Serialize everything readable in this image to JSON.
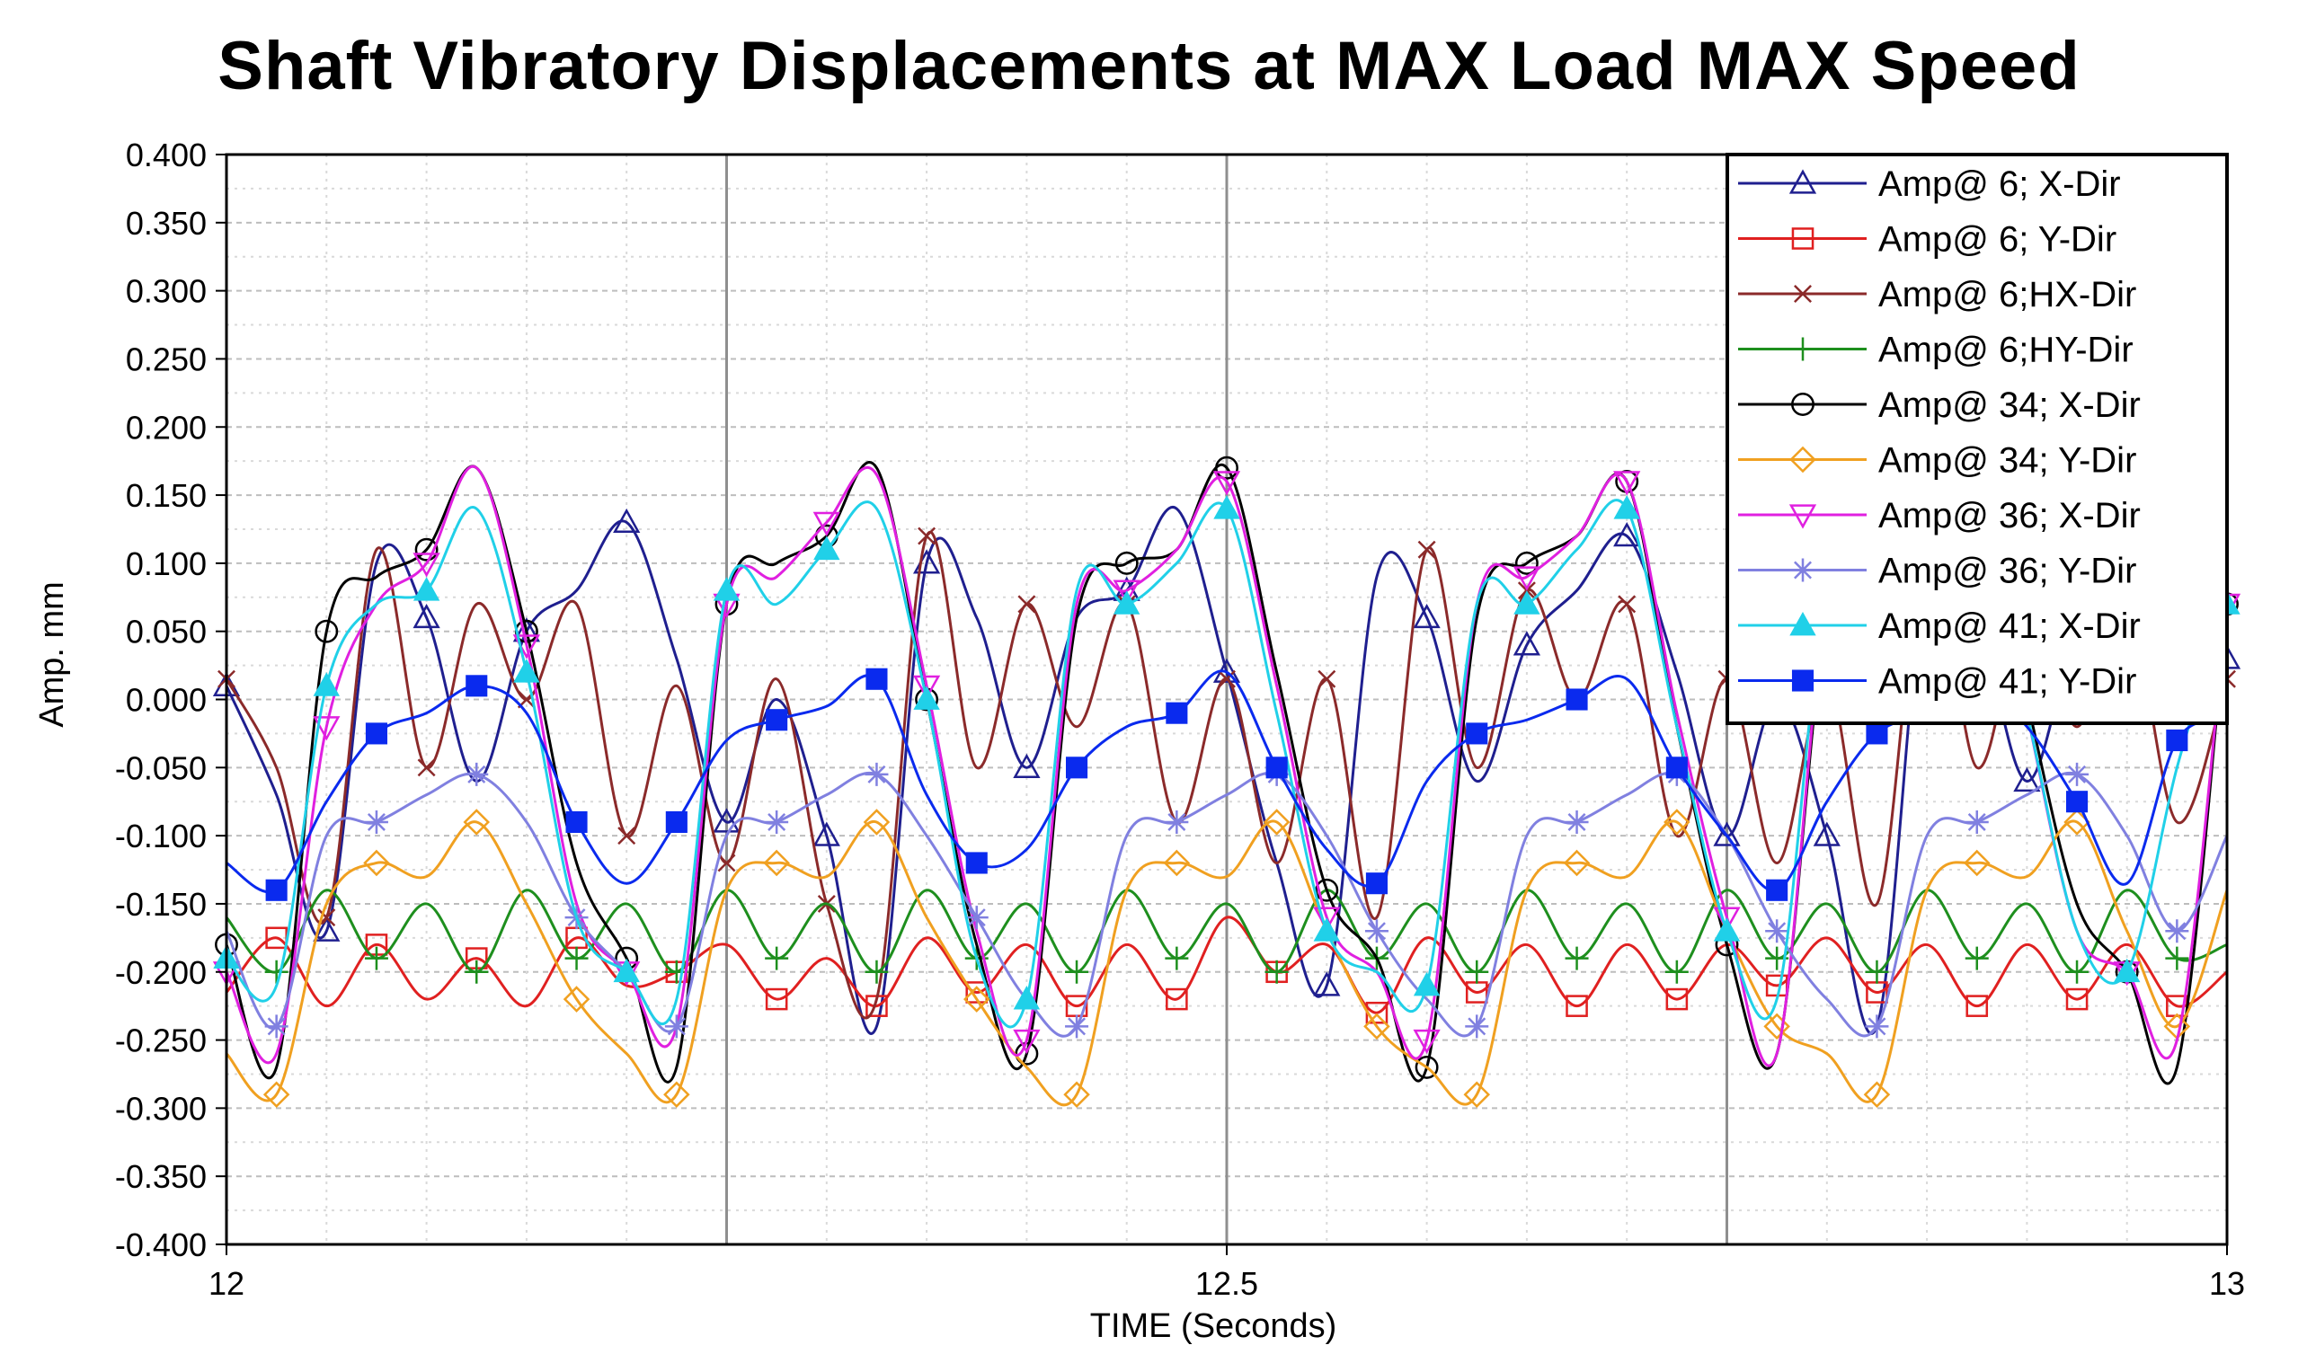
{
  "chart_data": {
    "type": "line",
    "title": "Shaft Vibratory Displacements at MAX Load MAX Speed",
    "xlabel": "TIME (Seconds)",
    "ylabel": "Amp. mm",
    "xlim": [
      12,
      13
    ],
    "ylim": [
      -0.4,
      0.4
    ],
    "x_ticks": [
      {
        "value": 12,
        "label": "12"
      },
      {
        "value": 12.5,
        "label": "12.5"
      },
      {
        "value": 13,
        "label": "13"
      }
    ],
    "y_ticks": [
      {
        "value": 0.4,
        "label": "0.400"
      },
      {
        "value": 0.35,
        "label": "0.350"
      },
      {
        "value": 0.3,
        "label": "0.300"
      },
      {
        "value": 0.25,
        "label": "0.250"
      },
      {
        "value": 0.2,
        "label": "0.200"
      },
      {
        "value": 0.15,
        "label": "0.150"
      },
      {
        "value": 0.1,
        "label": "0.100"
      },
      {
        "value": 0.05,
        "label": "0.050"
      },
      {
        "value": 0.0,
        "label": "0.000"
      },
      {
        "value": -0.05,
        "label": "-0.050"
      },
      {
        "value": -0.1,
        "label": "-0.100"
      },
      {
        "value": -0.15,
        "label": "-0.150"
      },
      {
        "value": -0.2,
        "label": "-0.200"
      },
      {
        "value": -0.25,
        "label": "-0.250"
      },
      {
        "value": -0.3,
        "label": "-0.300"
      },
      {
        "value": -0.35,
        "label": "-0.350"
      },
      {
        "value": -0.4,
        "label": "-0.400"
      }
    ],
    "grid": true,
    "legend_position": "top-right",
    "x": [
      12.0,
      12.025,
      12.05,
      12.075,
      12.1,
      12.125,
      12.15,
      12.175,
      12.2,
      12.225,
      12.25,
      12.275,
      12.3,
      12.325,
      12.35,
      12.375,
      12.4,
      12.425,
      12.45,
      12.475,
      12.5,
      12.525,
      12.55,
      12.575,
      12.6,
      12.625,
      12.65,
      12.675,
      12.7,
      12.725,
      12.75,
      12.775,
      12.8,
      12.825,
      12.85,
      12.875,
      12.9,
      12.925,
      12.95,
      12.975,
      13.0
    ],
    "series": [
      {
        "name": "Amp@  6; X-Dir",
        "color": "#1f1f8f",
        "marker": "triangle-open",
        "values": [
          0.01,
          -0.07,
          -0.17,
          0.1,
          0.06,
          -0.06,
          0.05,
          0.08,
          0.13,
          0.03,
          -0.09,
          0.0,
          -0.1,
          -0.24,
          0.1,
          0.06,
          -0.05,
          0.06,
          0.08,
          0.14,
          0.02,
          -0.12,
          -0.21,
          0.09,
          0.06,
          -0.06,
          0.04,
          0.08,
          0.12,
          0.02,
          -0.1,
          0.0,
          -0.1,
          -0.24,
          0.1,
          0.06,
          -0.06,
          0.05,
          0.08,
          0.13,
          0.03
        ]
      },
      {
        "name": "Amp@  6; Y-Dir",
        "color": "#e02020",
        "marker": "square-open",
        "values": [
          -0.215,
          -0.175,
          -0.225,
          -0.18,
          -0.22,
          -0.19,
          -0.225,
          -0.175,
          -0.21,
          -0.2,
          -0.18,
          -0.22,
          -0.19,
          -0.225,
          -0.175,
          -0.215,
          -0.18,
          -0.225,
          -0.18,
          -0.22,
          -0.16,
          -0.2,
          -0.18,
          -0.23,
          -0.175,
          -0.215,
          -0.18,
          -0.225,
          -0.18,
          -0.22,
          -0.18,
          -0.21,
          -0.175,
          -0.215,
          -0.18,
          -0.225,
          -0.18,
          -0.22,
          -0.18,
          -0.225,
          -0.2
        ]
      },
      {
        "name": "Amp@  6;HX-Dir",
        "color": "#8b2a2a",
        "marker": "x",
        "values": [
          0.015,
          -0.05,
          -0.16,
          0.11,
          -0.05,
          0.07,
          0.0,
          0.07,
          -0.1,
          0.01,
          -0.12,
          0.015,
          -0.15,
          -0.22,
          0.12,
          -0.05,
          0.07,
          -0.02,
          0.07,
          -0.09,
          0.015,
          -0.12,
          0.015,
          -0.16,
          0.11,
          -0.05,
          0.08,
          0.0,
          0.07,
          -0.1,
          0.015,
          -0.12,
          0.015,
          -0.15,
          0.12,
          -0.05,
          0.07,
          -0.02,
          0.07,
          -0.09,
          0.015
        ]
      },
      {
        "name": "Amp@  6;HY-Dir",
        "color": "#1e8f1e",
        "marker": "plus",
        "values": [
          -0.16,
          -0.2,
          -0.14,
          -0.19,
          -0.15,
          -0.2,
          -0.14,
          -0.19,
          -0.15,
          -0.2,
          -0.14,
          -0.19,
          -0.15,
          -0.2,
          -0.14,
          -0.19,
          -0.15,
          -0.2,
          -0.14,
          -0.19,
          -0.15,
          -0.2,
          -0.14,
          -0.19,
          -0.15,
          -0.2,
          -0.14,
          -0.19,
          -0.15,
          -0.2,
          -0.14,
          -0.19,
          -0.15,
          -0.2,
          -0.14,
          -0.19,
          -0.15,
          -0.2,
          -0.14,
          -0.19,
          -0.18
        ]
      },
      {
        "name": "Amp@ 34; X-Dir",
        "color": "#000000",
        "marker": "circle-open",
        "values": [
          -0.18,
          -0.27,
          0.05,
          0.09,
          0.11,
          0.17,
          0.05,
          -0.12,
          -0.19,
          -0.27,
          0.07,
          0.1,
          0.12,
          0.17,
          0.0,
          -0.18,
          -0.26,
          0.06,
          0.1,
          0.11,
          0.17,
          0.02,
          -0.14,
          -0.19,
          -0.27,
          0.06,
          0.1,
          0.12,
          0.16,
          -0.02,
          -0.18,
          -0.26,
          0.06,
          0.09,
          0.11,
          0.17,
          0.0,
          -0.15,
          -0.2,
          -0.27,
          0.07
        ]
      },
      {
        "name": "Amp@ 34; Y-Dir",
        "color": "#f0a020",
        "marker": "diamond-open",
        "values": [
          -0.26,
          -0.29,
          -0.15,
          -0.12,
          -0.13,
          -0.09,
          -0.15,
          -0.22,
          -0.26,
          -0.29,
          -0.14,
          -0.12,
          -0.13,
          -0.09,
          -0.16,
          -0.22,
          -0.27,
          -0.29,
          -0.14,
          -0.12,
          -0.13,
          -0.09,
          -0.17,
          -0.24,
          -0.27,
          -0.29,
          -0.14,
          -0.12,
          -0.13,
          -0.09,
          -0.17,
          -0.24,
          -0.26,
          -0.29,
          -0.14,
          -0.12,
          -0.13,
          -0.09,
          -0.17,
          -0.24,
          -0.14
        ]
      },
      {
        "name": "Amp@ 36; X-Dir",
        "color": "#e020e0",
        "marker": "triangle-down-open",
        "values": [
          -0.2,
          -0.26,
          -0.02,
          0.07,
          0.1,
          0.17,
          0.04,
          -0.15,
          -0.2,
          -0.24,
          0.07,
          0.09,
          0.13,
          0.165,
          0.01,
          -0.17,
          -0.25,
          0.07,
          0.08,
          0.11,
          0.16,
          0.01,
          -0.16,
          -0.2,
          -0.25,
          0.07,
          0.09,
          0.12,
          0.16,
          -0.01,
          -0.16,
          -0.26,
          0.07,
          0.09,
          0.12,
          0.16,
          -0.01,
          -0.17,
          -0.2,
          -0.25,
          0.07
        ]
      },
      {
        "name": "Amp@ 36; Y-Dir",
        "color": "#8080e0",
        "marker": "asterisk",
        "values": [
          -0.17,
          -0.24,
          -0.1,
          -0.09,
          -0.07,
          -0.055,
          -0.09,
          -0.16,
          -0.2,
          -0.24,
          -0.1,
          -0.09,
          -0.07,
          -0.055,
          -0.1,
          -0.16,
          -0.22,
          -0.24,
          -0.1,
          -0.09,
          -0.07,
          -0.055,
          -0.1,
          -0.17,
          -0.22,
          -0.24,
          -0.1,
          -0.09,
          -0.07,
          -0.055,
          -0.1,
          -0.17,
          -0.22,
          -0.24,
          -0.1,
          -0.09,
          -0.07,
          -0.055,
          -0.1,
          -0.17,
          -0.1
        ]
      },
      {
        "name": "Amp@ 41; X-Dir",
        "color": "#20d0e8",
        "marker": "triangle-filled",
        "values": [
          -0.19,
          -0.21,
          0.01,
          0.07,
          0.08,
          0.14,
          0.02,
          -0.16,
          -0.2,
          -0.22,
          0.08,
          0.07,
          0.11,
          0.14,
          0.0,
          -0.19,
          -0.22,
          0.08,
          0.07,
          0.1,
          0.14,
          -0.01,
          -0.17,
          -0.2,
          -0.21,
          0.07,
          0.07,
          0.11,
          0.14,
          -0.02,
          -0.17,
          -0.22,
          0.08,
          0.07,
          0.1,
          0.14,
          -0.01,
          -0.17,
          -0.2,
          -0.05,
          0.07
        ]
      },
      {
        "name": "Amp@ 41; Y-Dir",
        "color": "#0a2aee",
        "marker": "square-filled",
        "values": [
          -0.12,
          -0.14,
          -0.075,
          -0.025,
          -0.01,
          0.01,
          -0.01,
          -0.09,
          -0.135,
          -0.09,
          -0.03,
          -0.015,
          -0.005,
          0.015,
          -0.07,
          -0.12,
          -0.11,
          -0.05,
          -0.02,
          -0.01,
          0.02,
          -0.05,
          -0.11,
          -0.135,
          -0.06,
          -0.025,
          -0.015,
          0.0,
          0.015,
          -0.05,
          -0.1,
          -0.14,
          -0.075,
          -0.025,
          -0.01,
          0.01,
          -0.02,
          -0.075,
          -0.135,
          -0.03,
          -0.015
        ]
      }
    ]
  }
}
